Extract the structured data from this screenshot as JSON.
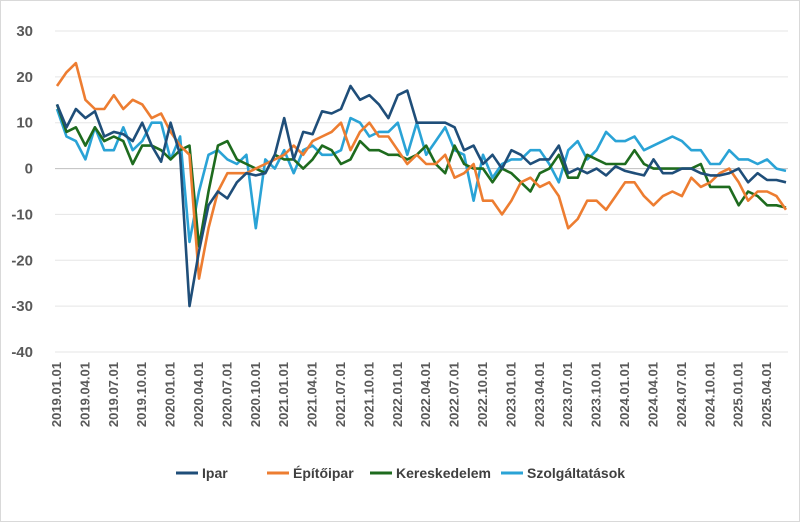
{
  "chart_data": {
    "type": "line",
    "title": "",
    "xlabel": "",
    "ylabel": "",
    "ylim": [
      -40,
      30
    ],
    "yticks": [
      30,
      20,
      10,
      0,
      -10,
      -20,
      -30,
      -40
    ],
    "grid": "horizontal",
    "legend_position": "bottom",
    "x_start": "2019.01.01",
    "x": [
      "2019.01.01",
      "2019.02.01",
      "2019.03.01",
      "2019.04.01",
      "2019.05.01",
      "2019.06.01",
      "2019.07.01",
      "2019.08.01",
      "2019.09.01",
      "2019.10.01",
      "2019.11.01",
      "2019.12.01",
      "2020.01.01",
      "2020.02.01",
      "2020.03.01",
      "2020.04.01",
      "2020.05.01",
      "2020.06.01",
      "2020.07.01",
      "2020.08.01",
      "2020.09.01",
      "2020.10.01",
      "2020.11.01",
      "2020.12.01",
      "2021.01.01",
      "2021.02.01",
      "2021.03.01",
      "2021.04.01",
      "2021.05.01",
      "2021.06.01",
      "2021.07.01",
      "2021.08.01",
      "2021.09.01",
      "2021.10.01",
      "2021.11.01",
      "2021.12.01",
      "2022.01.01",
      "2022.02.01",
      "2022.03.01",
      "2022.04.01",
      "2022.05.01",
      "2022.06.01",
      "2022.07.01",
      "2022.08.01",
      "2022.09.01",
      "2022.10.01",
      "2022.11.01",
      "2022.12.01",
      "2023.01.01",
      "2023.02.01",
      "2023.03.01",
      "2023.04.01",
      "2023.05.01",
      "2023.06.01",
      "2023.07.01",
      "2023.08.01",
      "2023.09.01",
      "2023.10.01",
      "2023.11.01",
      "2023.12.01",
      "2024.01.01",
      "2024.02.01",
      "2024.03.01",
      "2024.04.01",
      "2024.05.01",
      "2024.06.01",
      "2024.07.01",
      "2024.08.01",
      "2024.09.01",
      "2024.10.01",
      "2024.11.01",
      "2024.12.01",
      "2025.01.01",
      "2025.02.01",
      "2025.03.01",
      "2025.04.01",
      "2025.05.01",
      "2025.06.01"
    ],
    "xtick_labels": [
      "2019.01.01",
      "2019.04.01",
      "2019.07.01",
      "2019.10.01",
      "2020.01.01",
      "2020.04.01",
      "2020.07.01",
      "2020.10.01",
      "2021.01.01",
      "2021.04.01",
      "2021.07.01",
      "2021.10.01",
      "2022.01.01",
      "2022.04.01",
      "2022.07.01",
      "2022.10.01",
      "2023.01.01",
      "2023.04.01",
      "2023.07.01",
      "2023.10.01",
      "2024.01.01",
      "2024.04.01",
      "2024.07.01",
      "2024.10.01",
      "2025.01.01",
      "2025.04.01"
    ],
    "series": [
      {
        "name": "Ipar",
        "color": "#1f4e79",
        "values": [
          14,
          9,
          13,
          11,
          12.5,
          7,
          8,
          7.5,
          6,
          10,
          5,
          1.5,
          10,
          3,
          -30,
          -18,
          -8,
          -5,
          -6.5,
          -3,
          -1,
          -1.5,
          -1,
          3,
          11,
          2,
          8,
          7.5,
          12.5,
          12,
          13,
          18,
          15,
          16,
          14,
          11,
          16,
          17,
          10,
          10,
          10,
          10,
          9,
          4,
          5,
          1,
          3,
          0,
          4,
          3,
          1,
          2,
          2,
          5,
          -1,
          0,
          -1,
          0,
          -1.5,
          0.5,
          -0.5,
          -1,
          -1.5,
          2,
          -1,
          -1,
          0,
          0,
          -1,
          -1.5,
          -1.5,
          -1,
          0,
          -3,
          -1,
          -2.5,
          -2.5,
          -3
        ]
      },
      {
        "name": "Építőipar",
        "color": "#ed7d31",
        "values": [
          18,
          21,
          23,
          15,
          13,
          13,
          16,
          13,
          15,
          14,
          11,
          12,
          8,
          5,
          3,
          -24,
          -13,
          -5,
          -1,
          -1,
          -1,
          0,
          1,
          2,
          3,
          5,
          3,
          6,
          7,
          8,
          10,
          4,
          8,
          10,
          7,
          7,
          4,
          1,
          3,
          1,
          1,
          3,
          -2,
          -1,
          1,
          -7,
          -7,
          -10,
          -7,
          -3,
          -2,
          -4,
          -3,
          -6,
          -13,
          -11,
          -7,
          -7,
          -9,
          -6,
          -3,
          -3,
          -6,
          -8,
          -6,
          -5,
          -6,
          -2,
          -4,
          -3,
          -1,
          0,
          -3,
          -7,
          -5,
          -5,
          -6,
          -9
        ]
      },
      {
        "name": "Kereskedelem",
        "color": "#1e6b1e",
        "values": [
          14,
          8,
          9,
          5,
          9,
          6,
          7,
          6,
          1,
          5,
          5,
          4,
          2,
          4,
          5,
          -17,
          -5,
          5,
          6,
          2,
          1,
          0,
          -1,
          3,
          2,
          2,
          0,
          2,
          5,
          4,
          1,
          2,
          6,
          4,
          4,
          3,
          3,
          2,
          3,
          5,
          1,
          -1,
          5,
          1,
          0,
          0,
          -3,
          0,
          -1,
          -3,
          -5,
          -1,
          0,
          3,
          -2,
          -2,
          3,
          2,
          1,
          1,
          1,
          4,
          1,
          0,
          0,
          0,
          0,
          0,
          1,
          -4,
          -4,
          -4,
          -8,
          -5,
          -6,
          -8,
          -8,
          -8.5
        ]
      },
      {
        "name": "Szolgáltatások",
        "color": "#2aa3d6",
        "values": [
          13,
          7,
          6,
          2,
          9,
          4,
          4,
          9,
          4,
          6,
          10,
          10,
          2,
          7,
          -16,
          -5,
          3,
          4,
          2,
          1,
          3,
          -13,
          2,
          0,
          4,
          -1,
          4,
          5,
          3,
          3,
          4,
          11,
          10,
          7,
          8,
          8,
          10,
          3,
          10,
          3,
          6,
          9,
          4,
          3,
          -7,
          3,
          -2,
          1,
          2,
          2,
          4,
          4,
          1,
          -3,
          4,
          6,
          2,
          4,
          8,
          6,
          6,
          7,
          4,
          5,
          6,
          7,
          6,
          4,
          4,
          1,
          1,
          4,
          2,
          2,
          1,
          2,
          0,
          -0.5
        ]
      }
    ]
  }
}
